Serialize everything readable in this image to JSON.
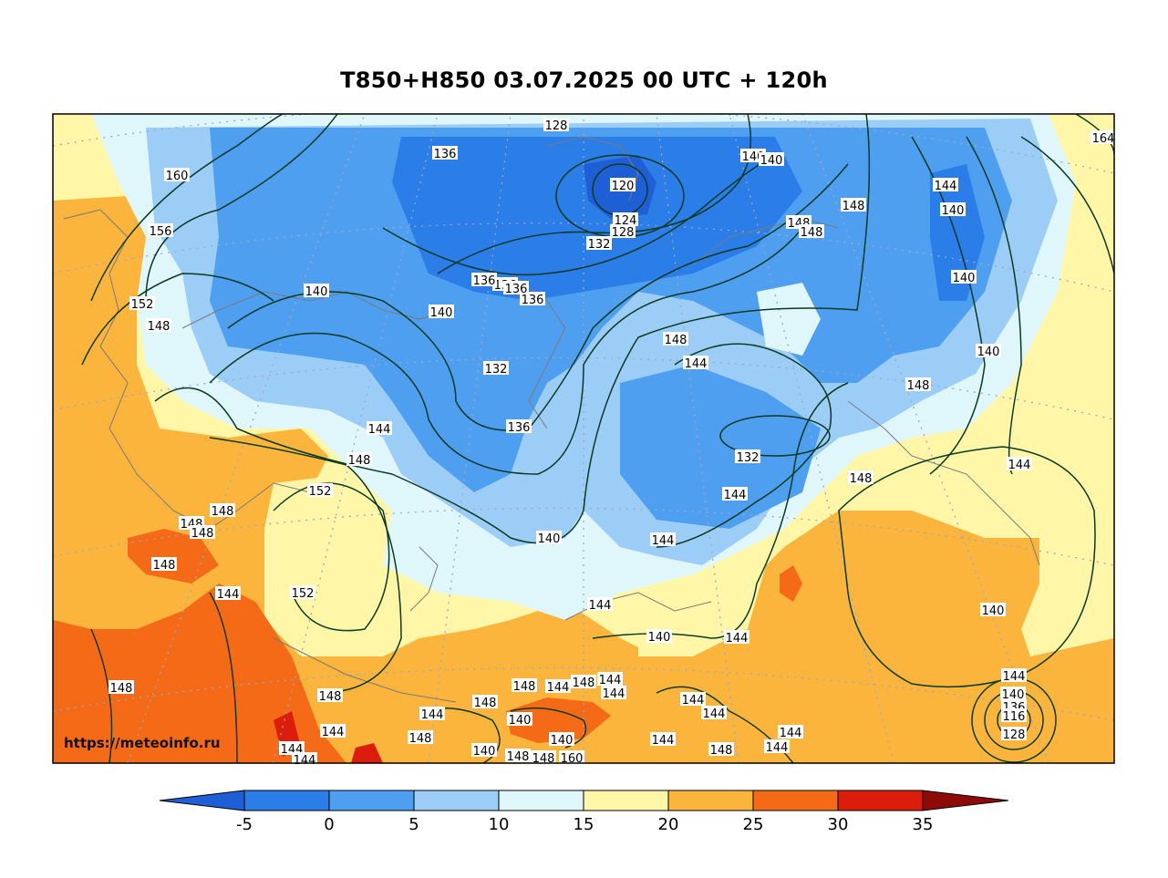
{
  "title": "T850+H850 03.07.2025 00 UTC + 120h",
  "watermark": "https://meteoinfo.ru",
  "colorbar": {
    "ticks": [
      "-5",
      "0",
      "5",
      "10",
      "15",
      "20",
      "25",
      "30",
      "35"
    ],
    "colors": {
      "below": "#1f5fd6",
      "b_-5_0": "#2b7de8",
      "b_0_5": "#4f9ff0",
      "b_5_10": "#9ccdf7",
      "b_10_15": "#dff6fb",
      "b_15_20": "#fff6a8",
      "b_20_25": "#fbb43c",
      "b_25_30": "#f56a16",
      "b_30_35": "#dc1d0c",
      "above": "#8c0b08"
    }
  },
  "contour_labels": [
    "128",
    "136",
    "120",
    "124",
    "128",
    "132",
    "140",
    "140",
    "144",
    "140",
    "148",
    "148",
    "148",
    "160",
    "164",
    "156",
    "152",
    "148",
    "140",
    "140",
    "136",
    "136",
    "136",
    "136",
    "132",
    "140",
    "148",
    "144",
    "140",
    "144",
    "148",
    "144",
    "136",
    "132",
    "140",
    "148",
    "144",
    "144",
    "148",
    "152",
    "148",
    "148",
    "148",
    "148",
    "144",
    "152",
    "140",
    "144",
    "144",
    "140",
    "140",
    "148",
    "148",
    "144",
    "148",
    "144",
    "144",
    "148",
    "144",
    "144",
    "140",
    "140",
    "144",
    "144",
    "148",
    "144",
    "144",
    "148",
    "144",
    "148",
    "144",
    "140",
    "136",
    "116",
    "128",
    "144",
    "148",
    "148",
    "144",
    "160"
  ],
  "map_layers": [
    "temperature-fill",
    "height-contours",
    "coastlines",
    "graticule"
  ]
}
